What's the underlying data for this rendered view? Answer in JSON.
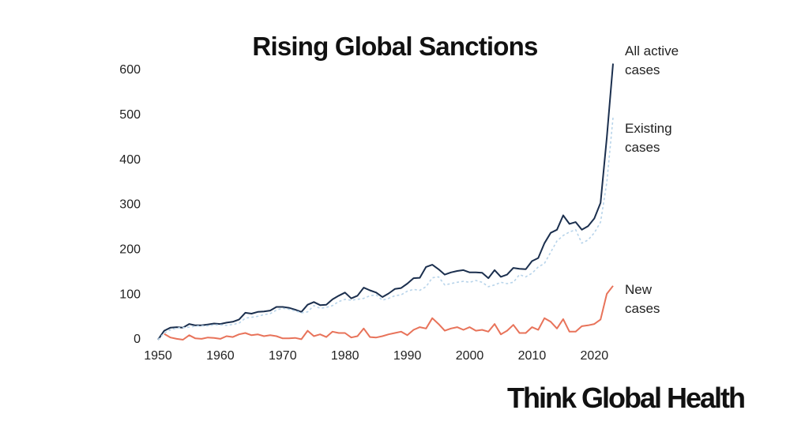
{
  "chart_data": {
    "type": "line",
    "title": "Rising Global Sanctions",
    "x": [
      1950,
      1951,
      1952,
      1953,
      1954,
      1955,
      1956,
      1957,
      1958,
      1959,
      1960,
      1961,
      1962,
      1963,
      1964,
      1965,
      1966,
      1967,
      1968,
      1969,
      1970,
      1971,
      1972,
      1973,
      1974,
      1975,
      1976,
      1977,
      1978,
      1979,
      1980,
      1981,
      1982,
      1983,
      1984,
      1985,
      1986,
      1987,
      1988,
      1989,
      1990,
      1991,
      1992,
      1993,
      1994,
      1995,
      1996,
      1997,
      1998,
      1999,
      2000,
      2001,
      2002,
      2003,
      2004,
      2005,
      2006,
      2007,
      2008,
      2009,
      2010,
      2011,
      2012,
      2013,
      2014,
      2015,
      2016,
      2017,
      2018,
      2019,
      2020,
      2021,
      2022,
      2023
    ],
    "series": [
      {
        "name": "All active cases",
        "color": "#1b2f4e",
        "dashed": false,
        "values": [
          0,
          20,
          27,
          28,
          27,
          35,
          32,
          32,
          34,
          36,
          35,
          38,
          40,
          45,
          60,
          58,
          62,
          63,
          65,
          73,
          73,
          71,
          67,
          62,
          78,
          84,
          77,
          78,
          90,
          98,
          105,
          92,
          98,
          116,
          110,
          105,
          95,
          103,
          113,
          115,
          125,
          137,
          138,
          162,
          167,
          157,
          145,
          150,
          153,
          155,
          150,
          150,
          149,
          137,
          155,
          140,
          145,
          160,
          158,
          157,
          175,
          182,
          215,
          238,
          245,
          277,
          258,
          262,
          245,
          253,
          270,
          305,
          450,
          615
        ]
      },
      {
        "name": "Existing cases",
        "color": "#b8d4ea",
        "dashed": true,
        "values": [
          0,
          15,
          22,
          26,
          27,
          28,
          30,
          31,
          31,
          33,
          33,
          32,
          34,
          37,
          48,
          50,
          52,
          56,
          58,
          66,
          70,
          68,
          64,
          60,
          62,
          76,
          70,
          72,
          76,
          85,
          90,
          88,
          90,
          92,
          98,
          100,
          88,
          92,
          98,
          100,
          108,
          112,
          110,
          118,
          138,
          140,
          122,
          125,
          128,
          130,
          128,
          132,
          128,
          118,
          122,
          128,
          125,
          128,
          145,
          140,
          148,
          162,
          170,
          195,
          220,
          232,
          240,
          245,
          215,
          222,
          238,
          262,
          350,
          495
        ]
      },
      {
        "name": "New cases",
        "color": "#e8735a",
        "dashed": false,
        "values": [
          null,
          13,
          5,
          2,
          0,
          10,
          3,
          2,
          5,
          4,
          2,
          8,
          6,
          12,
          15,
          10,
          12,
          8,
          10,
          8,
          3,
          3,
          4,
          1,
          20,
          8,
          12,
          6,
          18,
          15,
          15,
          5,
          8,
          25,
          6,
          5,
          8,
          12,
          15,
          18,
          10,
          22,
          28,
          25,
          48,
          35,
          20,
          25,
          28,
          22,
          28,
          20,
          22,
          18,
          35,
          12,
          20,
          33,
          15,
          15,
          28,
          22,
          48,
          40,
          25,
          46,
          18,
          18,
          30,
          32,
          35,
          45,
          102,
          120
        ]
      }
    ],
    "xlim": [
      1950,
      2023
    ],
    "ylim": [
      0,
      600
    ],
    "xticks": [
      1950,
      1960,
      1970,
      1980,
      1990,
      2000,
      2010,
      2020
    ],
    "yticks": [
      0,
      100,
      200,
      300,
      400,
      500,
      600
    ],
    "grid": false,
    "brand": "Think Global Health"
  }
}
